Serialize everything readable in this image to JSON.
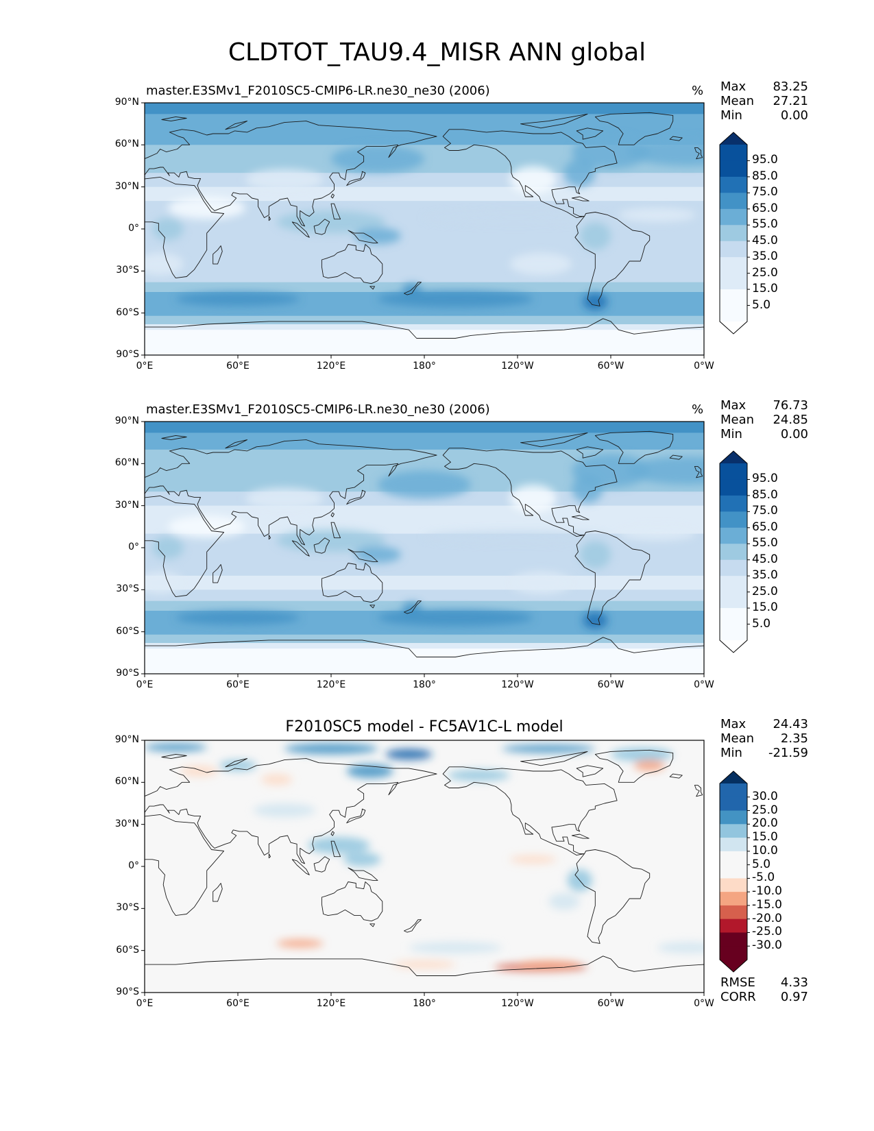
{
  "suptitle": "CLDTOT_TAU9.4_MISR ANN global",
  "colors": {
    "blues": [
      "#f7fbff",
      "#deebf7",
      "#c6dbef",
      "#9ecae1",
      "#6baed6",
      "#4292c6",
      "#2171b5",
      "#08519c",
      "#08306b"
    ],
    "diverging": [
      "#67001f",
      "#b2182b",
      "#d6604d",
      "#f4a582",
      "#fddbc7",
      "#f7f7f7",
      "#d1e5f0",
      "#92c5de",
      "#4393c3",
      "#2166ac",
      "#053061"
    ],
    "land_outline": "#1a1a1a"
  },
  "xticks": [
    "0°E",
    "60°E",
    "120°E",
    "180°",
    "120°W",
    "60°W",
    "0°W"
  ],
  "yticks": [
    "90°N",
    "60°N",
    "30°N",
    "0°",
    "30°S",
    "60°S",
    "90°S"
  ],
  "panels": [
    {
      "title": "master.E3SMv1_F2010SC5-CMIP6-LR.ne30_ne30 (2006)",
      "units": "%",
      "stats": {
        "max_label": "Max",
        "max": "83.25",
        "mean_label": "Mean",
        "mean": "27.21",
        "min_label": "Min",
        "min": "0.00"
      },
      "colorbar": {
        "ticks": [
          "95.0",
          "85.0",
          "75.0",
          "65.0",
          "55.0",
          "45.0",
          "35.0",
          "25.0",
          "15.0",
          "5.0"
        ]
      }
    },
    {
      "title": "master.E3SMv1_F2010SC5-CMIP6-LR.ne30_ne30 (2006)",
      "units": "%",
      "stats": {
        "max_label": "Max",
        "max": "76.73",
        "mean_label": "Mean",
        "mean": "24.85",
        "min_label": "Min",
        "min": "0.00"
      },
      "colorbar": {
        "ticks": [
          "95.0",
          "85.0",
          "75.0",
          "65.0",
          "55.0",
          "45.0",
          "35.0",
          "25.0",
          "15.0",
          "5.0"
        ]
      }
    },
    {
      "title": "F2010SC5 model - FC5AV1C-L model",
      "stats": {
        "max_label": "Max",
        "max": "24.43",
        "mean_label": "Mean",
        "mean": "2.35",
        "min_label": "Min",
        "min": "-21.59"
      },
      "colorbar": {
        "ticks": [
          "30.0",
          "25.0",
          "20.0",
          "15.0",
          "10.0",
          "5.0",
          "-5.0",
          "-10.0",
          "-15.0",
          "-20.0",
          "-25.0",
          "-30.0"
        ]
      },
      "metrics": {
        "rmse_label": "RMSE",
        "rmse": "4.33",
        "corr_label": "CORR",
        "corr": "0.97"
      }
    }
  ],
  "chart_data": [
    {
      "type": "heatmap",
      "title": "master.E3SMv1_F2010SC5-CMIP6-LR.ne30_ne30 (2006)",
      "xlabel": "",
      "ylabel": "",
      "xlim": [
        0,
        360
      ],
      "ylim": [
        -90,
        90
      ],
      "levels": [
        0,
        5,
        15,
        25,
        35,
        45,
        55,
        65,
        75,
        85,
        95,
        100
      ],
      "zonal_mean_profile": {
        "lat": [
          90,
          75,
          60,
          45,
          30,
          15,
          0,
          -15,
          -30,
          -45,
          -55,
          -65,
          -75,
          -90
        ],
        "value": [
          45,
          38,
          35,
          30,
          15,
          20,
          22,
          18,
          20,
          40,
          48,
          30,
          8,
          4
        ]
      },
      "max": 83.25,
      "mean": 27.21,
      "min": 0.0
    },
    {
      "type": "heatmap",
      "title": "master.E3SMv1_F2010SC5-CMIP6-LR.ne30_ne30 (2006)",
      "xlim": [
        0,
        360
      ],
      "ylim": [
        -90,
        90
      ],
      "levels": [
        0,
        5,
        15,
        25,
        35,
        45,
        55,
        65,
        75,
        85,
        95,
        100
      ],
      "zonal_mean_profile": {
        "lat": [
          90,
          75,
          60,
          45,
          30,
          15,
          0,
          -15,
          -30,
          -45,
          -55,
          -65,
          -75,
          -90
        ],
        "value": [
          40,
          35,
          33,
          28,
          14,
          18,
          20,
          17,
          18,
          38,
          45,
          28,
          8,
          4
        ]
      },
      "max": 76.73,
      "mean": 24.85,
      "min": 0.0
    },
    {
      "type": "heatmap",
      "title": "F2010SC5 model - FC5AV1C-L model",
      "xlim": [
        0,
        360
      ],
      "ylim": [
        -90,
        90
      ],
      "levels": [
        -30,
        -25,
        -20,
        -15,
        -10,
        -5,
        5,
        10,
        15,
        20,
        25,
        30
      ],
      "max": 24.43,
      "mean": 2.35,
      "min": -21.59,
      "rmse": 4.33,
      "corr": 0.97
    }
  ]
}
